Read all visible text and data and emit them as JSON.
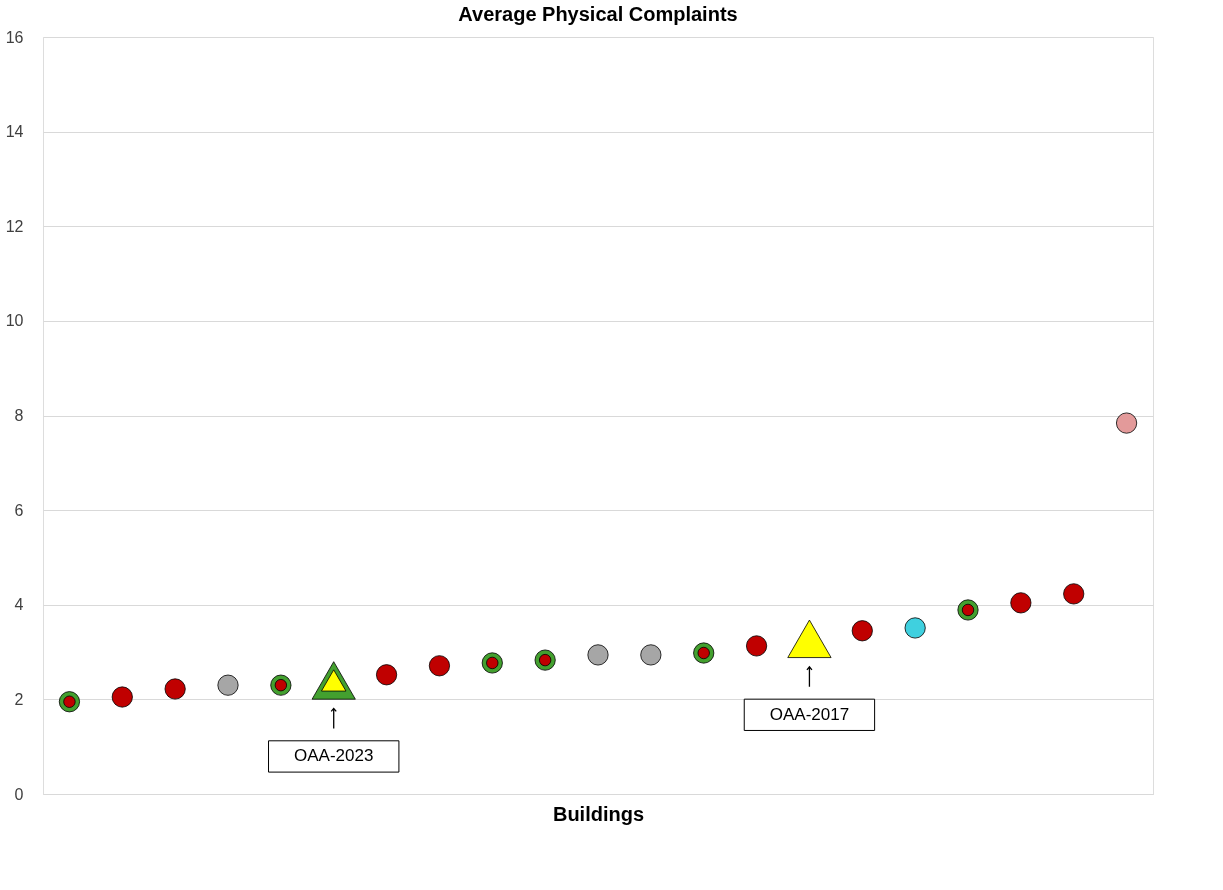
{
  "chart_data": {
    "type": "scatter",
    "title": "Average Physical Complaints",
    "xlabel": "Buildings",
    "categories": [
      null,
      null,
      null,
      null,
      null,
      null,
      null,
      null,
      null,
      null,
      null,
      null,
      null,
      null,
      null,
      null,
      null,
      null,
      null,
      null,
      null
    ],
    "ylim": [
      0,
      16
    ],
    "yticks": [
      0,
      2,
      4,
      6,
      8,
      10,
      12,
      14,
      16
    ],
    "grid": "y",
    "tick_labels": "y",
    "legend": false,
    "series": [
      {
        "color": "#43a02f",
        "marker": "circle",
        "values": [
          1.95,
          null,
          null,
          null,
          2.3,
          null,
          null,
          null,
          2.77,
          2.83,
          null,
          null,
          2.98,
          null,
          null,
          null,
          null,
          3.89,
          null,
          null,
          null
        ]
      },
      {
        "color": "#c00000",
        "marker": "circle",
        "values": [
          1.95,
          null,
          null,
          null,
          2.3,
          null,
          null,
          null,
          2.77,
          2.83,
          null,
          null,
          2.98,
          null,
          null,
          null,
          null,
          3.89,
          null,
          null,
          null
        ]
      },
      {
        "color": "#c00000",
        "marker": "circle",
        "values": [
          null,
          2.05,
          2.22,
          null,
          null,
          null,
          2.52,
          2.71,
          null,
          null,
          null,
          null,
          null,
          3.13,
          null,
          3.45,
          null,
          null,
          4.04,
          4.23,
          null
        ]
      },
      {
        "color": "#a6a6a6",
        "marker": "circle",
        "values": [
          null,
          null,
          null,
          2.3,
          null,
          null,
          null,
          null,
          null,
          null,
          2.94,
          2.94,
          null,
          null,
          null,
          null,
          null,
          null,
          null,
          null,
          null
        ]
      },
      {
        "color": "#3fd0df",
        "marker": "circle",
        "values": [
          null,
          null,
          null,
          null,
          null,
          null,
          null,
          null,
          null,
          null,
          null,
          null,
          null,
          null,
          null,
          null,
          3.51,
          null,
          null,
          null,
          null
        ]
      },
      {
        "color": "#e39a9a",
        "marker": "circle",
        "values": [
          null,
          null,
          null,
          null,
          null,
          null,
          null,
          null,
          null,
          null,
          null,
          null,
          null,
          null,
          null,
          null,
          null,
          null,
          null,
          null,
          7.84
        ]
      },
      {
        "color": "#43a02f",
        "marker": "triangle",
        "values": [
          null,
          null,
          null,
          null,
          null,
          2.4,
          null,
          null,
          null,
          null,
          null,
          null,
          null,
          null,
          null,
          null,
          null,
          null,
          null,
          null,
          null
        ]
      },
      {
        "color": "#ffff00",
        "marker": "triangle",
        "values": [
          null,
          null,
          null,
          null,
          null,
          2.4,
          null,
          null,
          null,
          null,
          null,
          null,
          null,
          null,
          3.28,
          null,
          null,
          null,
          null,
          null,
          null
        ]
      }
    ],
    "annotations": [
      "OAA-2023",
      "OAA-2017"
    ]
  }
}
